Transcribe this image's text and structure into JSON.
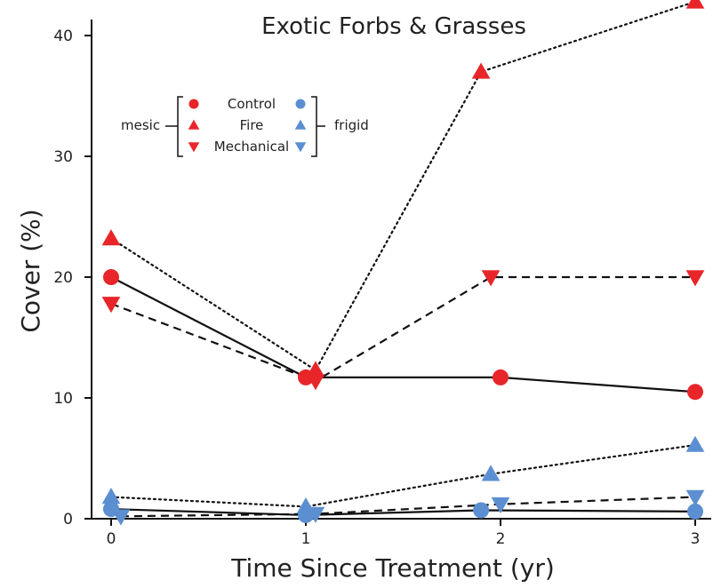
{
  "chart_data": {
    "type": "line",
    "title": "Exotic Forbs & Grasses",
    "xlabel": "Time Since Treatment (yr)",
    "ylabel": "Cover (%)",
    "xlim": [
      -0.1,
      3.1
    ],
    "ylim": [
      0,
      43
    ],
    "x_ticks": [
      "0",
      "1",
      "2",
      "3"
    ],
    "y_ticks": [
      "0",
      "10",
      "20",
      "30",
      "40"
    ],
    "grid": false,
    "legend": {
      "placement": "top-left",
      "entries": [
        "Control",
        "Fire",
        "Mechanical"
      ],
      "left_group_label": "mesic",
      "right_group_label": "frigid"
    },
    "colors": {
      "mesic": "#e8262a",
      "frigid": "#5b8fd1",
      "line": "#111111"
    },
    "series": [
      {
        "treatment": "Control",
        "site": "mesic",
        "marker": "circle",
        "line_style": "solid",
        "points": [
          [
            0,
            20
          ],
          [
            1,
            11.7
          ],
          [
            2,
            11.7
          ],
          [
            3,
            10.5
          ]
        ]
      },
      {
        "treatment": "Fire",
        "site": "mesic",
        "marker": "triangle-up",
        "line_style": "dotted",
        "points": [
          [
            0,
            23.2
          ],
          [
            1.05,
            12.3
          ],
          [
            1.9,
            37
          ],
          [
            3,
            42.8
          ]
        ]
      },
      {
        "treatment": "Mechanical",
        "site": "mesic",
        "marker": "triangle-down",
        "line_style": "dashed",
        "points": [
          [
            0,
            17.8
          ],
          [
            1.05,
            11.4
          ],
          [
            1.95,
            20
          ],
          [
            3,
            20
          ]
        ]
      },
      {
        "treatment": "Control",
        "site": "frigid",
        "marker": "circle",
        "line_style": "solid",
        "points": [
          [
            0,
            0.8
          ],
          [
            1,
            0.3
          ],
          [
            1.9,
            0.7
          ],
          [
            3,
            0.6
          ]
        ]
      },
      {
        "treatment": "Fire",
        "site": "frigid",
        "marker": "triangle-up",
        "line_style": "dotted",
        "points": [
          [
            0,
            1.8
          ],
          [
            1,
            1.0
          ],
          [
            1.95,
            3.7
          ],
          [
            3,
            6.1
          ]
        ]
      },
      {
        "treatment": "Mechanical",
        "site": "frigid",
        "marker": "triangle-down",
        "line_style": "dashed",
        "points": [
          [
            0.05,
            0.2
          ],
          [
            1.05,
            0.4
          ],
          [
            2,
            1.2
          ],
          [
            3,
            1.8
          ]
        ]
      }
    ]
  }
}
